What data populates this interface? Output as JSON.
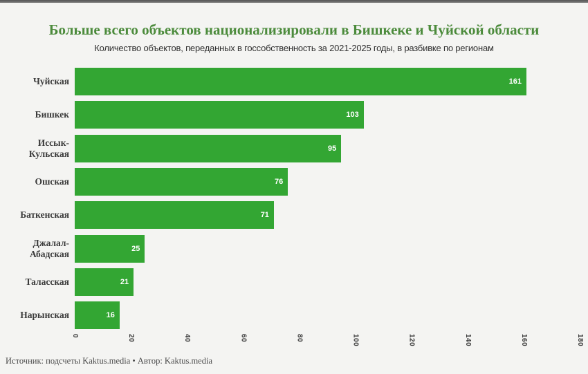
{
  "page": {
    "title": "Больше всего объектов национализировали в Бишкеке и Чуйской области",
    "subtitle": "Количество объектов, переданных в госсобственность за 2021-2025 годы, в разбивке по регионам",
    "footer": "Источник: подсчеты Kaktus.media • Автор: Kaktus.media"
  },
  "colors": {
    "bar": "#33a633",
    "title": "#4c8b3c",
    "background": "#f4f4f2",
    "top_strip": "#6b6b6b",
    "value_label": "#ffffff",
    "category_label": "#3b3b3b"
  },
  "chart_data": {
    "type": "bar",
    "orientation": "horizontal",
    "title": "Больше всего объектов национализировали в Бишкеке и Чуйской области",
    "subtitle": "Количество объектов, переданных в госсобственность за 2021-2025 годы, в разбивке по регионам",
    "categories": [
      "Чуйская",
      "Бишкек",
      "Иссык-Кульская",
      "Ошская",
      "Баткенская",
      "Джалал-Абадская",
      "Таласская",
      "Нарынская"
    ],
    "values": [
      161,
      103,
      95,
      76,
      71,
      25,
      21,
      16
    ],
    "xlabel": "",
    "ylabel": "",
    "xlim": [
      0,
      180
    ],
    "xticks": [
      0,
      20,
      40,
      60,
      80,
      100,
      120,
      140,
      160,
      180
    ],
    "xtick_rotation": 90,
    "grid": false,
    "legend": false,
    "bar_color": "#33a633",
    "value_label_position": "inside-end",
    "source": "Источник: подсчеты Kaktus.media • Автор: Kaktus.media"
  }
}
